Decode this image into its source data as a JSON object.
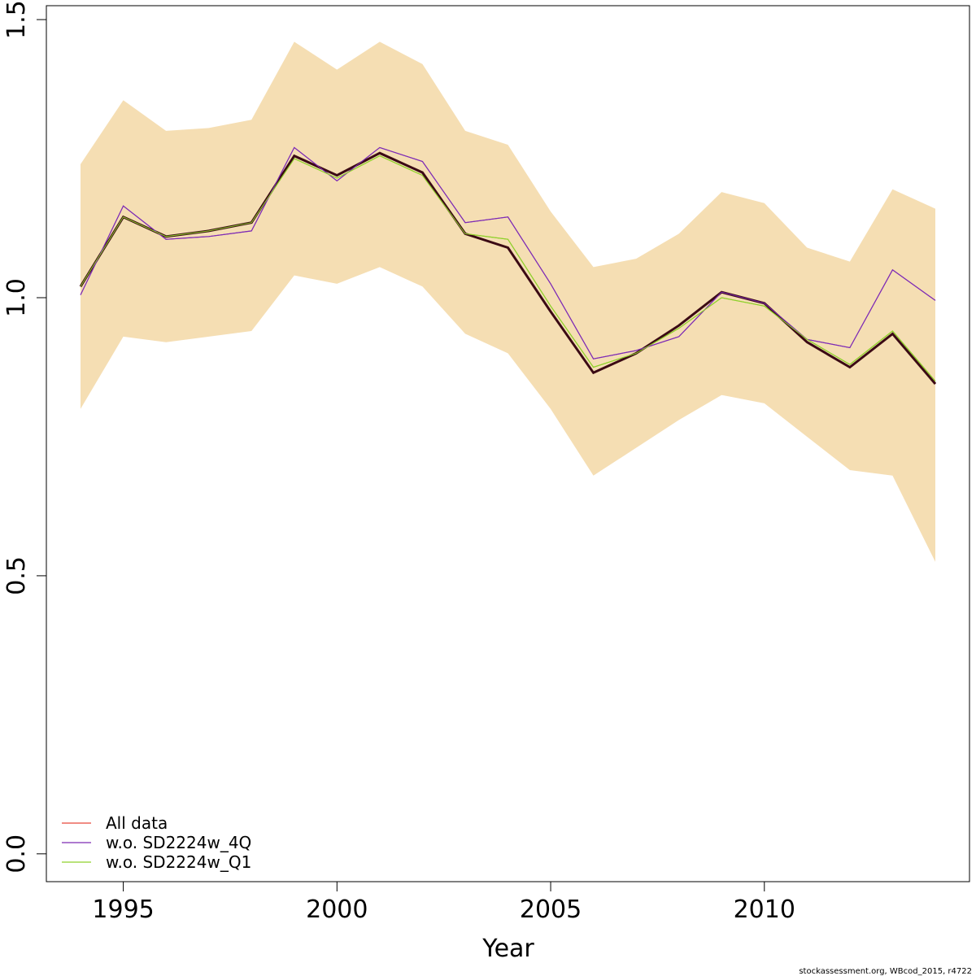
{
  "chart_data": {
    "type": "line",
    "xlabel": "Year",
    "ylabel": "",
    "xlim": [
      1993.2,
      2014.8
    ],
    "ylim": [
      -0.05,
      1.525
    ],
    "x_ticks": [
      1995,
      2000,
      2005,
      2010
    ],
    "x_tick_labels": [
      "1995",
      "2000",
      "2005",
      "2010"
    ],
    "y_ticks": [
      0,
      0.5,
      1.0,
      1.5
    ],
    "y_tick_labels": [
      "0.0",
      "0.5",
      "1.0",
      "1.5"
    ],
    "x": [
      1994,
      1995,
      1996,
      1997,
      1998,
      1999,
      2000,
      2001,
      2002,
      2003,
      2004,
      2005,
      2006,
      2007,
      2008,
      2009,
      2010,
      2011,
      2012,
      2013,
      2014
    ],
    "band": {
      "color": "#F5DEB3",
      "lower": [
        0.8,
        0.93,
        0.92,
        0.93,
        0.94,
        1.04,
        1.025,
        1.055,
        1.02,
        0.935,
        0.9,
        0.8,
        0.68,
        0.73,
        0.78,
        0.825,
        0.81,
        0.75,
        0.69,
        0.68,
        0.525
      ],
      "upper": [
        1.24,
        1.355,
        1.3,
        1.305,
        1.32,
        1.46,
        1.41,
        1.46,
        1.42,
        1.3,
        1.275,
        1.155,
        1.055,
        1.07,
        1.115,
        1.19,
        1.17,
        1.09,
        1.065,
        1.195,
        1.16
      ]
    },
    "series": [
      {
        "name": "All data",
        "color": "#E8473A",
        "values": [
          1.02,
          1.145,
          1.11,
          1.12,
          1.135,
          1.255,
          1.22,
          1.26,
          1.225,
          1.115,
          1.09,
          0.975,
          0.865,
          0.9,
          0.95,
          1.01,
          0.99,
          0.92,
          0.875,
          0.935,
          0.845
        ]
      },
      {
        "name": "w.o. SD2224w_4Q",
        "color": "#7E2BB5",
        "values": [
          1.005,
          1.165,
          1.105,
          1.11,
          1.12,
          1.27,
          1.21,
          1.27,
          1.245,
          1.135,
          1.145,
          1.025,
          0.89,
          0.905,
          0.93,
          1.01,
          0.99,
          0.925,
          0.91,
          1.05,
          0.995
        ]
      },
      {
        "name": "w.o. SD2224w_Q1",
        "color": "#8FD12B",
        "values": [
          1.02,
          1.145,
          1.11,
          1.12,
          1.135,
          1.25,
          1.215,
          1.255,
          1.22,
          1.115,
          1.105,
          0.985,
          0.875,
          0.9,
          0.945,
          1.0,
          0.985,
          0.925,
          0.88,
          0.94,
          0.85
        ]
      }
    ],
    "highlight_line": {
      "color": "#3B0A14",
      "values": [
        1.02,
        1.145,
        1.11,
        1.12,
        1.135,
        1.255,
        1.22,
        1.26,
        1.225,
        1.115,
        1.09,
        0.975,
        0.865,
        0.9,
        0.95,
        1.01,
        0.99,
        0.92,
        0.875,
        0.935,
        0.845
      ]
    },
    "legend": {
      "position": "bottom-left",
      "entries": [
        "All data",
        "w.o. SD2224w_4Q",
        "w.o. SD2224w_Q1"
      ]
    },
    "grid": false
  },
  "footer_text": "stockassessment.org, WBcod_2015, r4722"
}
